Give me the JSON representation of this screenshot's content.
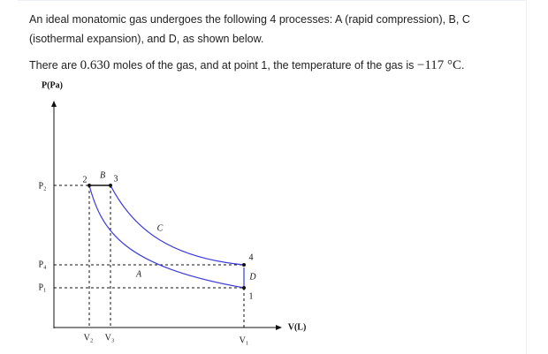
{
  "problem": {
    "paragraph1": "An ideal monatomic gas undergoes the following 4 processes: A (rapid compression), B, C (isothermal expansion), and D, as shown below.",
    "paragraph2": {
      "before": "There are ",
      "moles": "0.630",
      "middle": " moles of the gas, and at point 1, the temperature of the gas is ",
      "temperature": "−117 °C",
      "after": "."
    }
  },
  "diagram": {
    "y_axis_label": "P(Pa)",
    "x_axis_label": "V(L)",
    "pressure_labels": [
      "P₂",
      "P₄",
      "P₁"
    ],
    "volume_labels": [
      "V₂",
      "V₃",
      "V₁"
    ],
    "points": [
      "1",
      "2",
      "3",
      "4"
    ],
    "processes": [
      "A",
      "B",
      "C",
      "D"
    ]
  }
}
